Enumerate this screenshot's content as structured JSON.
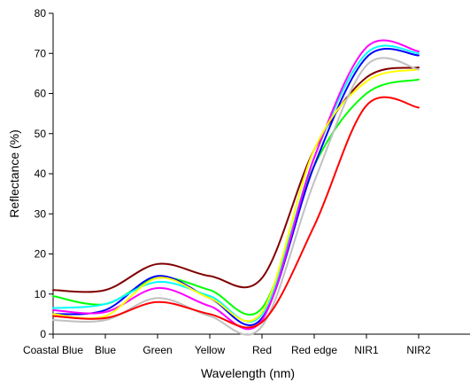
{
  "chart_data": {
    "type": "line",
    "title": "",
    "xlabel": "Wavelength (nm)",
    "ylabel": "Reflectance (%)",
    "categories": [
      "Coastal Blue",
      "Blue",
      "Green",
      "Yellow",
      "Red",
      "Red edge",
      "NIR1",
      "NIR2"
    ],
    "ylim": [
      0,
      80
    ],
    "yticks": [
      0,
      10,
      20,
      30,
      40,
      50,
      60,
      70,
      80
    ],
    "grid": false,
    "legend": "none",
    "series": [
      {
        "color": "#800000",
        "values": [
          11,
          11,
          17.5,
          14.5,
          14,
          46,
          64,
          66.5
        ]
      },
      {
        "color": "#00ff00",
        "values": [
          9.5,
          7.5,
          14,
          11,
          6.5,
          42,
          60,
          63.5
        ]
      },
      {
        "color": "#0000ff",
        "values": [
          5,
          6,
          14.5,
          9,
          4,
          42,
          69,
          69.5
        ]
      },
      {
        "color": "#00ffff",
        "values": [
          6.5,
          7.5,
          13,
          9.5,
          5,
          44,
          70,
          70
        ]
      },
      {
        "color": "#ff00ff",
        "values": [
          6,
          5.5,
          11.5,
          7,
          3.5,
          44,
          71.5,
          70.5
        ]
      },
      {
        "color": "#ffff00",
        "values": [
          5,
          4.5,
          14,
          9,
          5.5,
          46,
          63,
          66
        ]
      },
      {
        "color": "#c0c0c0",
        "values": [
          3.5,
          3.5,
          9,
          4.5,
          2,
          38,
          67,
          66
        ]
      },
      {
        "color": "#ff0000",
        "values": [
          4.5,
          4,
          8,
          5,
          3,
          27,
          57,
          56.5
        ]
      }
    ]
  }
}
